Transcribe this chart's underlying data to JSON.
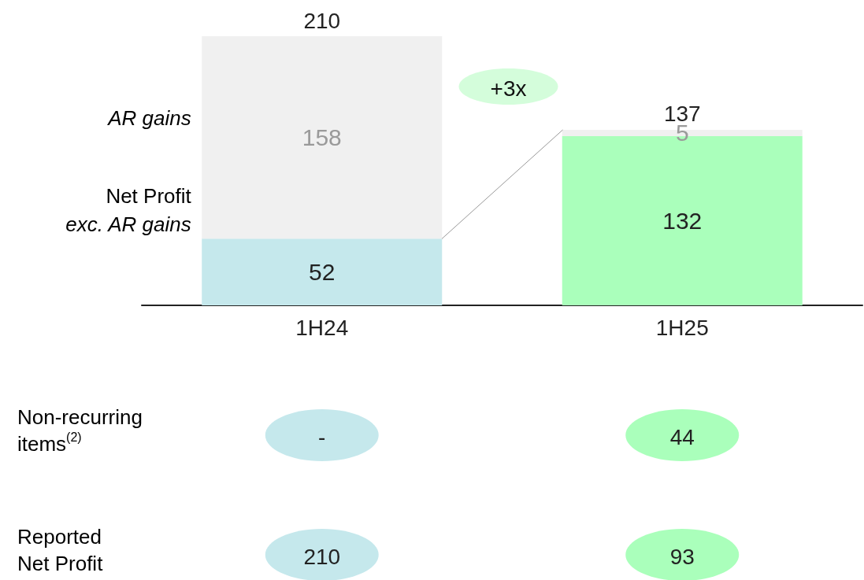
{
  "chart_data": {
    "type": "bar",
    "stacked": true,
    "data_labels": true,
    "categories": [
      "1H24",
      "1H25"
    ],
    "series": [
      {
        "name": "Net Profit\nexc. AR gains",
        "colors": [
          "#c5e8ec",
          "#aaffbb"
        ],
        "values": [
          52,
          132
        ]
      },
      {
        "name": "AR gains",
        "color": "#f0f0f0",
        "values": [
          158,
          5
        ]
      }
    ],
    "totals": [
      "210",
      "137"
    ],
    "annotations": [
      "+3x",
      "Non-recurring\nitems$^{(2)}$",
      "-",
      "44",
      "Reported\nNet Profit",
      "210",
      "93"
    ]
  }
}
